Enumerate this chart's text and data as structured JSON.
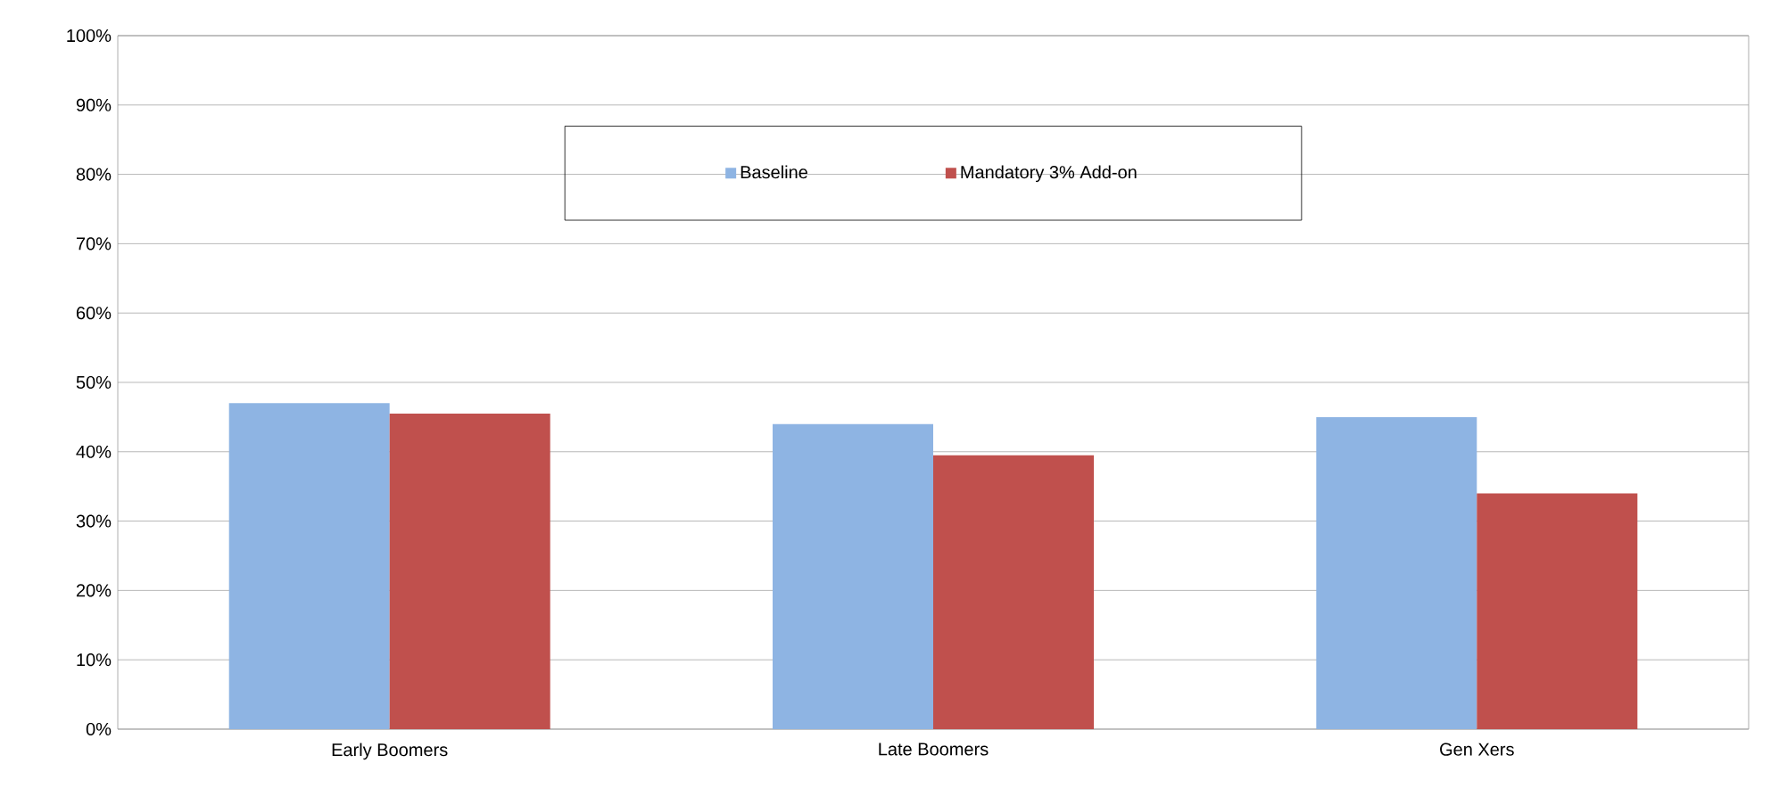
{
  "chart_data": {
    "type": "bar",
    "categories": [
      "Early Boomers",
      "Late Boomers",
      "Gen Xers"
    ],
    "series": [
      {
        "name": "Baseline",
        "color": "#8eb4e3",
        "values": [
          47,
          44,
          45
        ]
      },
      {
        "name": "Mandatory 3% Add-on",
        "color": "#c0504d",
        "values": [
          45.5,
          39.5,
          34
        ]
      }
    ],
    "ylim": [
      0,
      100
    ],
    "yticks": [
      {
        "value": 0,
        "label": "0%"
      },
      {
        "value": 10,
        "label": "10%"
      },
      {
        "value": 20,
        "label": "20%"
      },
      {
        "value": 30,
        "label": "30%"
      },
      {
        "value": 40,
        "label": "40%"
      },
      {
        "value": 50,
        "label": "50%"
      },
      {
        "value": 60,
        "label": "60%"
      },
      {
        "value": 70,
        "label": "70%"
      },
      {
        "value": 80,
        "label": "80%"
      },
      {
        "value": 90,
        "label": "90%"
      },
      {
        "value": 100,
        "label": "100%"
      }
    ],
    "grid": "y",
    "legend": "top"
  }
}
